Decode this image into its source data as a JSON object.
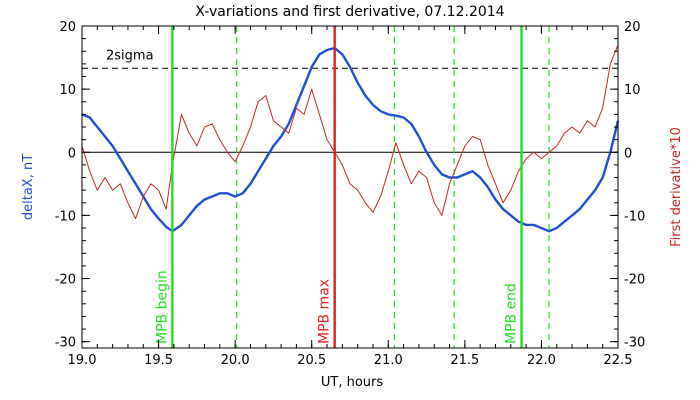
{
  "chart_data": {
    "type": "line",
    "title": "X-variations and first derivative, 07.12.2014",
    "xlabel": "UT, hours",
    "ylabel_left": "deltaX, nT",
    "ylabel_right": "First derivative*10",
    "xlim": [
      19.0,
      22.5
    ],
    "ylim": [
      -31,
      20
    ],
    "x_ticks": [
      19.0,
      19.5,
      20.0,
      20.5,
      21.0,
      21.5,
      22.0,
      22.5
    ],
    "x_tick_labels": [
      "19.0",
      "19.5",
      "20.0",
      "20.5",
      "21.0",
      "21.5",
      "22.0",
      "22.5"
    ],
    "y_ticks": [
      20,
      10,
      0,
      -10,
      -20,
      -30
    ],
    "y_tick_labels_left": [
      "20",
      "10",
      "0",
      "-10",
      "-20",
      "-30"
    ],
    "y_tick_labels_right": [
      "20",
      "10",
      "0",
      "-10",
      "-20",
      "-30"
    ],
    "threshold": {
      "label": "2sigma",
      "value": 13.3
    },
    "zero_line": 0,
    "colors": {
      "deltaX": "#1f50d0",
      "derivative": "#c0281e",
      "mpb": "#22dd22",
      "max": "#e02020",
      "axis": "#000000"
    },
    "markers": [
      {
        "label": "MPB begin",
        "x": 19.59,
        "style": "solid",
        "color": "#22dd22"
      },
      {
        "label": "MPB max",
        "x": 20.65,
        "style": "solid",
        "color": "#e02020"
      },
      {
        "label": "MPB end",
        "x": 21.87,
        "style": "solid",
        "color": "#22dd22"
      }
    ],
    "dashed_markers": [
      20.01,
      21.04,
      21.43,
      22.05
    ],
    "series": [
      {
        "name": "deltaX",
        "axis": "left",
        "x": [
          19.0,
          19.05,
          19.1,
          19.15,
          19.2,
          19.25,
          19.3,
          19.35,
          19.4,
          19.45,
          19.5,
          19.55,
          19.59,
          19.65,
          19.7,
          19.75,
          19.8,
          19.85,
          19.9,
          19.95,
          20.0,
          20.05,
          20.1,
          20.15,
          20.2,
          20.25,
          20.3,
          20.35,
          20.4,
          20.45,
          20.5,
          20.55,
          20.6,
          20.65,
          20.7,
          20.75,
          20.8,
          20.85,
          20.9,
          20.95,
          21.0,
          21.05,
          21.1,
          21.15,
          21.2,
          21.25,
          21.3,
          21.35,
          21.4,
          21.45,
          21.5,
          21.55,
          21.6,
          21.65,
          21.7,
          21.75,
          21.8,
          21.85,
          21.9,
          21.95,
          22.0,
          22.05,
          22.1,
          22.15,
          22.2,
          22.25,
          22.3,
          22.35,
          22.4,
          22.45,
          22.5
        ],
        "values": [
          6.0,
          5.5,
          4.0,
          2.5,
          1.0,
          -1.0,
          -3.0,
          -5.0,
          -7.0,
          -9.0,
          -10.5,
          -11.8,
          -12.5,
          -11.5,
          -10.0,
          -8.5,
          -7.5,
          -7.0,
          -6.5,
          -6.5,
          -7.0,
          -6.5,
          -5.0,
          -3.0,
          -1.0,
          1.0,
          2.5,
          4.5,
          7.5,
          10.5,
          13.5,
          15.5,
          16.2,
          16.5,
          15.5,
          13.5,
          11.0,
          9.0,
          7.5,
          6.5,
          6.0,
          5.8,
          5.5,
          4.5,
          2.5,
          0.0,
          -2.0,
          -3.5,
          -4.0,
          -4.0,
          -3.5,
          -3.0,
          -4.0,
          -5.5,
          -7.5,
          -9.0,
          -10.0,
          -11.0,
          -11.5,
          -11.5,
          -12.0,
          -12.5,
          -12.0,
          -11.0,
          -10.0,
          -9.0,
          -7.5,
          -6.0,
          -4.0,
          0.0,
          5.0
        ]
      },
      {
        "name": "First derivative*10",
        "axis": "right",
        "x": [
          19.0,
          19.05,
          19.1,
          19.15,
          19.2,
          19.25,
          19.3,
          19.35,
          19.4,
          19.45,
          19.5,
          19.55,
          19.59,
          19.65,
          19.7,
          19.75,
          19.8,
          19.85,
          19.9,
          19.95,
          20.0,
          20.05,
          20.1,
          20.15,
          20.2,
          20.25,
          20.3,
          20.35,
          20.4,
          20.45,
          20.5,
          20.55,
          20.6,
          20.65,
          20.7,
          20.75,
          20.8,
          20.85,
          20.9,
          20.95,
          21.0,
          21.05,
          21.1,
          21.15,
          21.2,
          21.25,
          21.3,
          21.35,
          21.4,
          21.45,
          21.5,
          21.55,
          21.6,
          21.65,
          21.7,
          21.75,
          21.8,
          21.85,
          21.9,
          21.95,
          22.0,
          22.05,
          22.1,
          22.15,
          22.2,
          22.25,
          22.3,
          22.35,
          22.4,
          22.45,
          22.5
        ],
        "values": [
          1.0,
          -3.0,
          -6.0,
          -4.0,
          -6.0,
          -5.0,
          -8.0,
          -10.5,
          -7.0,
          -5.0,
          -6.0,
          -9.0,
          -2.0,
          6.0,
          3.0,
          1.0,
          4.0,
          4.5,
          2.0,
          0.0,
          -1.5,
          1.0,
          4.0,
          8.0,
          9.0,
          5.0,
          4.0,
          3.0,
          7.0,
          6.0,
          10.0,
          6.0,
          2.0,
          0.0,
          -2.0,
          -5.0,
          -6.0,
          -8.0,
          -9.5,
          -7.0,
          -3.0,
          1.5,
          -2.0,
          -5.0,
          -3.0,
          -4.0,
          -8.0,
          -10.0,
          -5.0,
          -2.0,
          1.0,
          2.5,
          2.0,
          -2.0,
          -5.0,
          -8.0,
          -6.0,
          -3.0,
          -1.0,
          0.0,
          -1.0,
          0.0,
          1.0,
          3.0,
          4.0,
          3.0,
          5.0,
          4.0,
          7.0,
          14.0,
          17.0
        ]
      }
    ]
  }
}
